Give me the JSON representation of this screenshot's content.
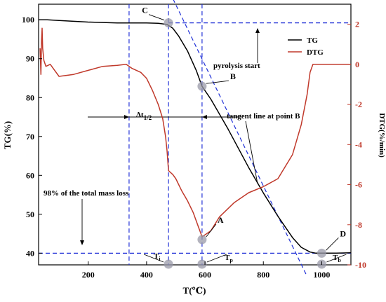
{
  "chart_data": {
    "type": "line",
    "x_label": "T(℃)",
    "y_label_left": "TG(%)",
    "y_label_right": "DTG(%/min)",
    "xlim": [
      30,
      1100
    ],
    "ylim_left": [
      37,
      104
    ],
    "ylim_right": [
      -10,
      3
    ],
    "x_ticks": [
      200,
      400,
      600,
      800,
      1000
    ],
    "y_ticks_left": [
      40,
      50,
      60,
      70,
      80,
      90,
      100
    ],
    "y_ticks_right": [
      2,
      0,
      -2,
      -4,
      -6,
      -8,
      -10
    ],
    "legend_position": "top-right",
    "series": [
      {
        "name": "TG",
        "axis": "left",
        "color": "#000000",
        "x": [
          30,
          60,
          100,
          200,
          300,
          400,
          440,
          470,
          490,
          510,
          540,
          570,
          590,
          620,
          650,
          680,
          700,
          750,
          800,
          850,
          900,
          930,
          960,
          980,
          1000,
          1050,
          1100
        ],
        "y": [
          100.0,
          100.0,
          99.8,
          99.4,
          99.2,
          99.2,
          99.1,
          98.8,
          97.8,
          95.8,
          92.0,
          87.0,
          82.9,
          79.6,
          75.7,
          71.8,
          69.0,
          62.0,
          55.5,
          49.5,
          44.0,
          41.5,
          40.3,
          40.0,
          40.0,
          40.0,
          40.1
        ]
      },
      {
        "name": "DTG",
        "axis": "right",
        "color": "#c0392b",
        "x": [
          35,
          38,
          40,
          42,
          44,
          48,
          55,
          70,
          100,
          150,
          200,
          250,
          300,
          330,
          350,
          380,
          400,
          420,
          440,
          455,
          465,
          470,
          475,
          490,
          500,
          520,
          540,
          560,
          580,
          590,
          600,
          620,
          650,
          700,
          750,
          800,
          850,
          900,
          930,
          950,
          960,
          970,
          980,
          1000,
          1050,
          1100
        ],
        "y": [
          0.8,
          -0.5,
          1.2,
          1.8,
          0.8,
          0.2,
          -0.1,
          0.0,
          -0.6,
          -0.5,
          -0.3,
          -0.1,
          -0.05,
          0.0,
          -0.2,
          -0.4,
          -0.7,
          -1.3,
          -2.0,
          -2.7,
          -3.6,
          -4.3,
          -5.3,
          -5.5,
          -5.7,
          -6.3,
          -6.8,
          -7.4,
          -8.2,
          -8.6,
          -8.5,
          -8.3,
          -7.6,
          -6.9,
          -6.4,
          -6.1,
          -5.7,
          -4.5,
          -3.0,
          -1.5,
          -0.4,
          0.0,
          0.0,
          0.0,
          0.0,
          0.0
        ]
      }
    ],
    "reference_lines": {
      "vertical_T": [
        340,
        475,
        590
      ],
      "horizontal_TG": [
        40,
        99.2
      ],
      "tangent_through_B": {
        "x": [
          480,
          950
        ],
        "y": [
          107,
          34
        ]
      },
      "mass_loss_width_TG": 75
    },
    "markers": [
      {
        "label": "C",
        "x": 475,
        "y": 99.2
      },
      {
        "label": "B",
        "x": 590,
        "y": 82.9
      },
      {
        "label": "A",
        "x": 590,
        "y": 43.5
      },
      {
        "label": "D",
        "x": 1000,
        "y": 40.0
      },
      {
        "label": "Ti",
        "x": 475,
        "y": 37
      },
      {
        "label": "Tp",
        "x": 590,
        "y": 37
      },
      {
        "label": "Tb",
        "x": 1000,
        "y": 37
      }
    ],
    "annotations": {
      "pyrolysis_start": "pyrolysis start",
      "tangent_line": "tangent line at point B",
      "mass_loss_98": "98% of the total mass loss",
      "delta_t_label": "Δt",
      "delta_t_subscript": "1/2",
      "ti": "T",
      "ti_sub": "i",
      "tp": "T",
      "tp_sub": "p",
      "tb": "T",
      "tb_sub": "b"
    }
  }
}
